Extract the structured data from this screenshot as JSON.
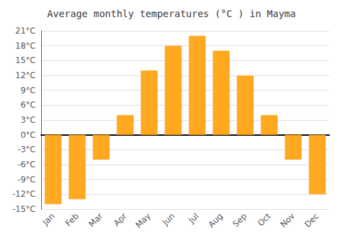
{
  "chart_data": {
    "type": "bar",
    "title": "Average monthly temperatures (°C ) in Mayma",
    "categories": [
      "Jan",
      "Feb",
      "Mar",
      "Apr",
      "May",
      "Jun",
      "Jul",
      "Aug",
      "Sep",
      "Oct",
      "Nov",
      "Dec"
    ],
    "values": [
      -14,
      -13,
      -5,
      4,
      13,
      18,
      20,
      17,
      12,
      4,
      -5,
      -12
    ],
    "color": "#FFA820",
    "ylim": [
      -15,
      21
    ],
    "yticks": [
      {
        "value": -15,
        "label": "-15°C"
      },
      {
        "value": -12,
        "label": "-12°C"
      },
      {
        "value": -9,
        "label": "-9°C"
      },
      {
        "value": -6,
        "label": "-6°C"
      },
      {
        "value": -3,
        "label": "-3°C"
      },
      {
        "value": 0,
        "label": "0°C"
      },
      {
        "value": 3,
        "label": "3°C"
      },
      {
        "value": 6,
        "label": "6°C"
      },
      {
        "value": 9,
        "label": "9°C"
      },
      {
        "value": 12,
        "label": "12°C"
      },
      {
        "value": 15,
        "label": "15°C"
      },
      {
        "value": 18,
        "label": "18°C"
      },
      {
        "value": 21,
        "label": "21°C"
      }
    ],
    "grid": true
  }
}
